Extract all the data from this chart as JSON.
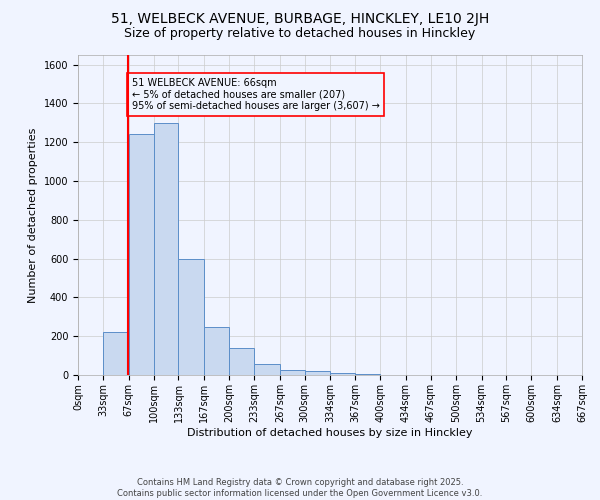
{
  "title": "51, WELBECK AVENUE, BURBAGE, HINCKLEY, LE10 2JH",
  "subtitle": "Size of property relative to detached houses in Hinckley",
  "xlabel": "Distribution of detached houses by size in Hinckley",
  "ylabel": "Number of detached properties",
  "bar_color_face": "#c9d9f0",
  "bar_color_edge": "#5b8ec9",
  "background_color": "#f0f4ff",
  "grid_color": "#cccccc",
  "redline_x": 66,
  "annotation_title": "51 WELBECK AVENUE: 66sqm",
  "annotation_line1": "← 5% of detached houses are smaller (207)",
  "annotation_line2": "95% of semi-detached houses are larger (3,607) →",
  "bins": [
    0,
    33,
    67,
    100,
    133,
    167,
    200,
    233,
    267,
    300,
    334,
    367,
    400,
    434,
    467,
    500,
    534,
    567,
    600,
    634,
    667
  ],
  "bin_labels": [
    "0sqm",
    "33sqm",
    "67sqm",
    "100sqm",
    "133sqm",
    "167sqm",
    "200sqm",
    "233sqm",
    "267sqm",
    "300sqm",
    "334sqm",
    "367sqm",
    "400sqm",
    "434sqm",
    "467sqm",
    "500sqm",
    "534sqm",
    "567sqm",
    "600sqm",
    "634sqm",
    "667sqm"
  ],
  "counts": [
    0,
    220,
    1245,
    1300,
    600,
    245,
    140,
    55,
    25,
    20,
    10,
    5,
    0,
    0,
    0,
    0,
    0,
    0,
    0,
    0
  ],
  "ylim": [
    0,
    1650
  ],
  "yticks": [
    0,
    200,
    400,
    600,
    800,
    1000,
    1200,
    1400,
    1600
  ],
  "footer_line1": "Contains HM Land Registry data © Crown copyright and database right 2025.",
  "footer_line2": "Contains public sector information licensed under the Open Government Licence v3.0.",
  "title_fontsize": 10,
  "subtitle_fontsize": 9,
  "axis_label_fontsize": 8,
  "tick_fontsize": 7,
  "footer_fontsize": 6
}
